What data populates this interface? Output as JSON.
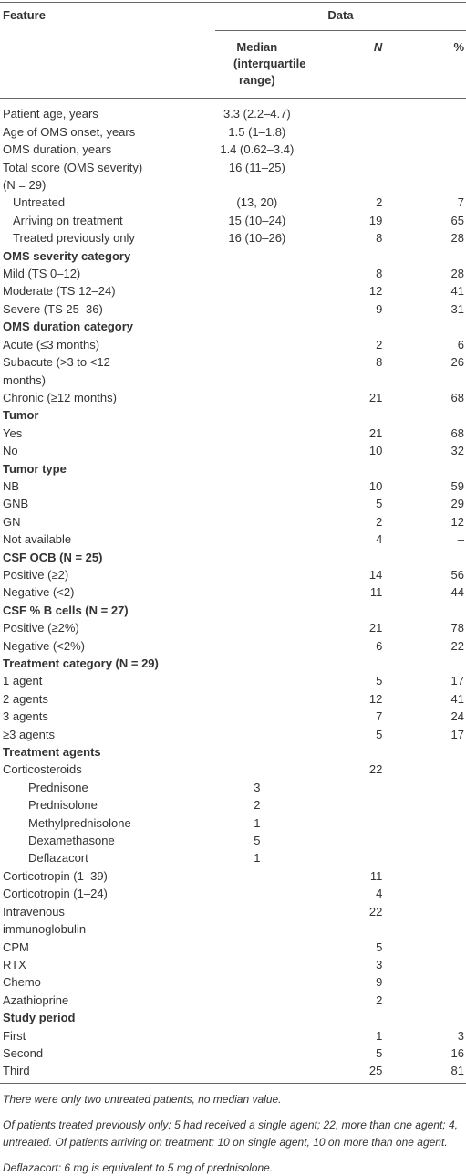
{
  "header": {
    "feature": "Feature",
    "data": "Data",
    "median": "Median (interquartile range)",
    "n": "N",
    "pct": "%"
  },
  "sections": [
    {
      "rows": [
        {
          "feature": "Patient age, years",
          "median": "3.3 (2.2–4.7)"
        },
        {
          "feature": "Age of OMS onset, years",
          "median": "1.5 (1–1.8)"
        },
        {
          "feature": "OMS duration, years",
          "median": "1.4 (0.62–3.4)"
        },
        {
          "feature": "Total score (OMS severity) (N = 29)",
          "median": "16 (11–25)",
          "children": [
            {
              "feature": "Untreated",
              "median": "(13, 20)",
              "n": 2,
              "pct": 7
            },
            {
              "feature": "Arriving on treatment",
              "median": "15 (10–24)",
              "n": 19,
              "pct": 65
            },
            {
              "feature": "Treated previously only",
              "median": "16 (10–26)",
              "n": 8,
              "pct": 28
            }
          ]
        }
      ]
    },
    {
      "title": "OMS severity category",
      "rows": [
        {
          "feature": "Mild (TS 0–12)",
          "n": 8,
          "pct": 28
        },
        {
          "feature": "Moderate (TS 12–24)",
          "n": 12,
          "pct": 41
        },
        {
          "feature": "Severe (TS 25–36)",
          "n": 9,
          "pct": 31
        }
      ]
    },
    {
      "title": "OMS duration category",
      "rows": [
        {
          "feature": "Acute (≤3 months)",
          "n": 2,
          "pct": 6
        },
        {
          "feature": "Subacute (>3 to <12 months)",
          "n": 8,
          "pct": 26
        },
        {
          "feature": "Chronic (≥12 months)",
          "n": 21,
          "pct": 68
        }
      ]
    },
    {
      "title": "Tumor",
      "rows": [
        {
          "feature": "Yes",
          "n": 21,
          "pct": 68
        },
        {
          "feature": "No",
          "n": 10,
          "pct": 32
        }
      ]
    },
    {
      "title": "Tumor type",
      "rows": [
        {
          "feature": "NB",
          "n": 10,
          "pct": 59
        },
        {
          "feature": "GNB",
          "n": 5,
          "pct": 29
        },
        {
          "feature": "GN",
          "n": 2,
          "pct": 12
        },
        {
          "feature": "Not available",
          "n": 4,
          "pct": "–"
        }
      ]
    },
    {
      "title": "CSF OCB (N = 25)",
      "rows": [
        {
          "feature": "Positive (≥2)",
          "n": 14,
          "pct": 56
        },
        {
          "feature": "Negative (<2)",
          "n": 11,
          "pct": 44
        }
      ]
    },
    {
      "title": "CSF % B cells (N = 27)",
      "rows": [
        {
          "feature": "Positive (≥2%)",
          "n": 21,
          "pct": 78
        },
        {
          "feature": "Negative (<2%)",
          "n": 6,
          "pct": 22
        }
      ]
    },
    {
      "title": "Treatment category (N = 29)",
      "rows": [
        {
          "feature": "1 agent",
          "n": 5,
          "pct": 17
        },
        {
          "feature": "2 agents",
          "n": 12,
          "pct": 41
        },
        {
          "feature": "3 agents",
          "n": 7,
          "pct": 24
        },
        {
          "feature": "≥3 agents",
          "n": 5,
          "pct": 17
        }
      ]
    },
    {
      "title": "Treatment agents",
      "rows": [
        {
          "feature": "Corticosteroids",
          "n": 22,
          "children": [
            {
              "feature": "Prednisone",
              "median": 3
            },
            {
              "feature": "Prednisolone",
              "median": 2
            },
            {
              "feature": "Methylprednisolone",
              "median": 1
            },
            {
              "feature": "Dexamethasone",
              "median": 5
            },
            {
              "feature": "Deflazacort",
              "median": 1
            }
          ]
        },
        {
          "feature": "Corticotropin (1–39)",
          "n": 11
        },
        {
          "feature": "Corticotropin (1–24)",
          "n": 4
        },
        {
          "feature": "Intravenous immunoglobulin",
          "n": 22
        },
        {
          "feature": "CPM",
          "n": 5
        },
        {
          "feature": "RTX",
          "n": 3
        },
        {
          "feature": "Chemo",
          "n": 9
        },
        {
          "feature": "Azathioprine",
          "n": 2
        }
      ]
    },
    {
      "title": "Study period",
      "rows": [
        {
          "feature": "First",
          "n": 1,
          "pct": 3
        },
        {
          "feature": "Second",
          "n": 5,
          "pct": 16
        },
        {
          "feature": "Third",
          "n": 25,
          "pct": 81
        }
      ]
    }
  ],
  "footnotes": [
    "There were only two untreated patients, no median value.",
    "Of patients treated previously only: 5 had received a single agent; 22, more than one agent; 4, untreated. Of patients arriving on treatment: 10 on single agent, 10 on more than one agent.",
    "Deflazacort: 6 mg is equivalent to 5 mg of prednisolone."
  ]
}
